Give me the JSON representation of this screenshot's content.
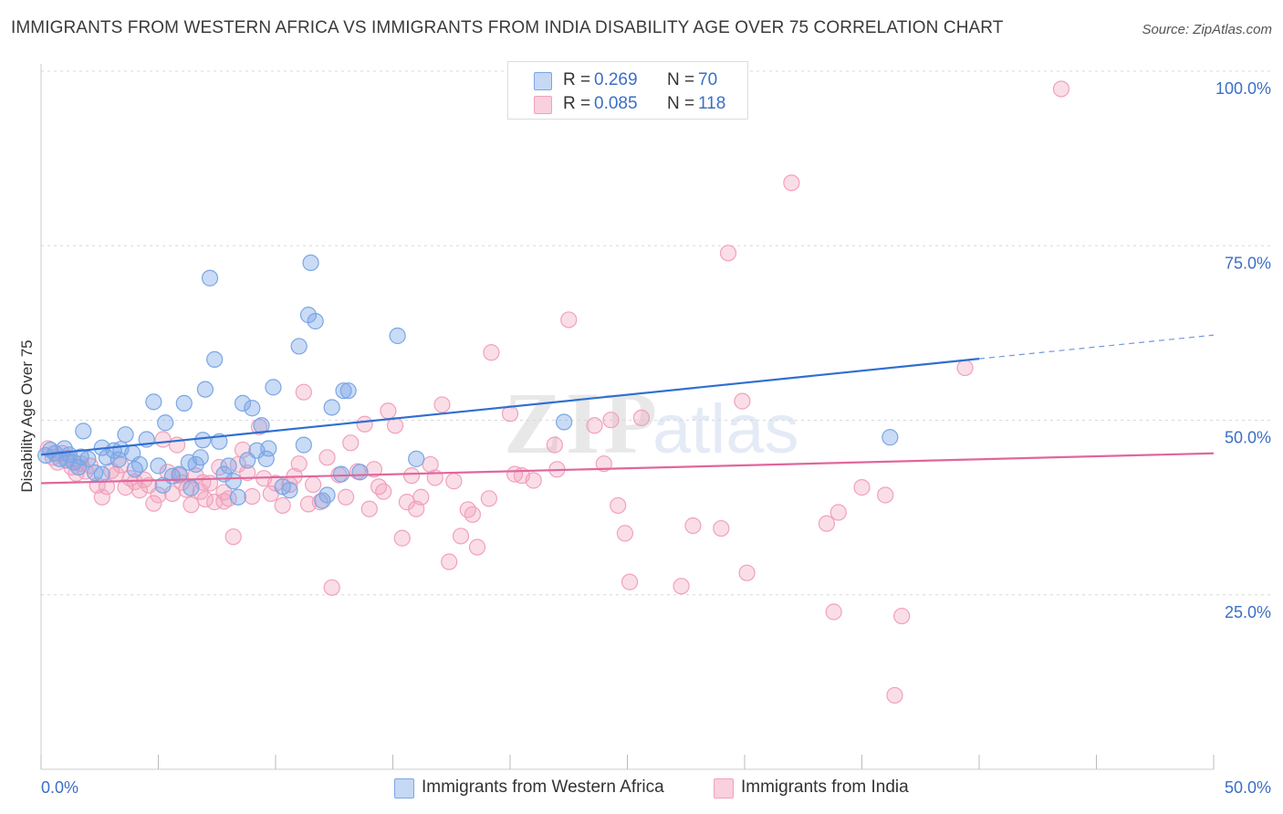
{
  "header": {
    "title": "IMMIGRANTS FROM WESTERN AFRICA VS IMMIGRANTS FROM INDIA DISABILITY AGE OVER 75 CORRELATION CHART",
    "source": "Source: ZipAtlas.com"
  },
  "watermark": {
    "zip": "ZIP",
    "atlas": "atlas"
  },
  "legend": {
    "series1": {
      "r_label": "R = ",
      "r_value": "0.269",
      "n_label": "N = ",
      "n_value": "70",
      "color": "#7aa6e6"
    },
    "series2": {
      "r_label": "R = ",
      "r_value": "0.085",
      "n_label": "N = ",
      "n_value": "118",
      "color": "#f2a0bb"
    }
  },
  "bottom_legend": {
    "series1_label": "Immigrants from Western Africa",
    "series2_label": "Immigrants from India"
  },
  "chart_data": {
    "type": "scatter",
    "title": "IMMIGRANTS FROM WESTERN AFRICA VS IMMIGRANTS FROM INDIA DISABILITY AGE OVER 75 CORRELATION CHART",
    "ylabel": "Disability Age Over 75",
    "xlabel": "",
    "x_tick_labels": [
      "0.0%",
      "50.0%"
    ],
    "y_tick_labels": [
      "100.0%",
      "75.0%",
      "50.0%",
      "25.0%"
    ],
    "y_tick_values": [
      100,
      75,
      50,
      25
    ],
    "xlim": [
      0,
      50
    ],
    "ylim": [
      0,
      102
    ],
    "grid": true,
    "legend_position": "top-center",
    "series": [
      {
        "name": "Immigrants from Western Africa",
        "color": "#7aa6e6",
        "line_color": "#2f6fd0",
        "trend": {
          "x0": 0,
          "y0": 47.6,
          "x1": 40,
          "y1": 61.4,
          "dash_to_x": 50,
          "dash_to_y": 64.8
        },
        "points": [
          [
            0.2,
            47.5
          ],
          [
            0.4,
            48.3
          ],
          [
            0.6,
            47.8
          ],
          [
            0.8,
            47.0
          ],
          [
            1.0,
            48.5
          ],
          [
            1.2,
            47.6
          ],
          [
            1.4,
            46.5
          ],
          [
            1.6,
            45.8
          ],
          [
            1.8,
            51.0
          ],
          [
            2.0,
            47.0
          ],
          [
            2.3,
            45.0
          ],
          [
            2.6,
            48.6
          ],
          [
            2.8,
            47.2
          ],
          [
            3.1,
            48.2
          ],
          [
            3.4,
            48.4
          ],
          [
            3.6,
            50.5
          ],
          [
            3.9,
            47.8
          ],
          [
            4.0,
            45.5
          ],
          [
            4.2,
            46.2
          ],
          [
            4.5,
            49.8
          ],
          [
            4.8,
            55.2
          ],
          [
            5.0,
            46.0
          ],
          [
            5.2,
            43.2
          ],
          [
            5.3,
            52.2
          ],
          [
            5.6,
            44.5
          ],
          [
            5.9,
            44.8
          ],
          [
            6.1,
            55.0
          ],
          [
            6.3,
            46.5
          ],
          [
            6.4,
            42.8
          ],
          [
            6.6,
            46.2
          ],
          [
            6.8,
            47.2
          ],
          [
            6.9,
            49.7
          ],
          [
            7.0,
            57.0
          ],
          [
            7.2,
            73.0
          ],
          [
            7.4,
            61.3
          ],
          [
            7.6,
            49.5
          ],
          [
            7.8,
            44.8
          ],
          [
            8.0,
            46.0
          ],
          [
            8.2,
            43.8
          ],
          [
            8.4,
            41.5
          ],
          [
            8.6,
            55.0
          ],
          [
            8.8,
            46.8
          ],
          [
            9.0,
            54.3
          ],
          [
            9.2,
            48.2
          ],
          [
            9.4,
            51.8
          ],
          [
            9.6,
            47.0
          ],
          [
            9.7,
            48.5
          ],
          [
            9.9,
            57.3
          ],
          [
            10.3,
            43.0
          ],
          [
            10.6,
            42.5
          ],
          [
            11.0,
            63.2
          ],
          [
            11.2,
            49.0
          ],
          [
            11.4,
            67.7
          ],
          [
            11.7,
            66.8
          ],
          [
            11.5,
            75.2
          ],
          [
            12.0,
            41.0
          ],
          [
            12.2,
            41.8
          ],
          [
            12.4,
            54.4
          ],
          [
            12.8,
            44.8
          ],
          [
            12.9,
            56.8
          ],
          [
            13.1,
            56.8
          ],
          [
            15.2,
            64.7
          ],
          [
            16.0,
            47.0
          ],
          [
            22.3,
            52.3
          ],
          [
            2.6,
            44.8
          ],
          [
            3.3,
            46.9
          ],
          [
            1.7,
            47.3
          ],
          [
            1.1,
            46.8
          ],
          [
            36.2,
            50.1
          ],
          [
            13.6,
            45.1
          ]
        ]
      },
      {
        "name": "Immigrants from India",
        "color": "#f2a0bb",
        "line_color": "#e0679a",
        "trend": {
          "x0": 0,
          "y0": 43.5,
          "x1": 50,
          "y1": 47.8
        },
        "points": [
          [
            0.3,
            48.5
          ],
          [
            0.5,
            47.2
          ],
          [
            0.7,
            46.5
          ],
          [
            0.9,
            47.8
          ],
          [
            1.1,
            47.1
          ],
          [
            1.3,
            45.8
          ],
          [
            1.5,
            44.9
          ],
          [
            1.7,
            46.3
          ],
          [
            1.9,
            45.2
          ],
          [
            2.1,
            46.0
          ],
          [
            2.4,
            43.2
          ],
          [
            2.6,
            41.5
          ],
          [
            2.8,
            43.0
          ],
          [
            3.0,
            45.3
          ],
          [
            3.2,
            44.8
          ],
          [
            3.4,
            46.1
          ],
          [
            3.6,
            42.9
          ],
          [
            3.8,
            44.2
          ],
          [
            4.0,
            43.7
          ],
          [
            4.2,
            42.5
          ],
          [
            4.4,
            44.0
          ],
          [
            4.6,
            43.2
          ],
          [
            4.8,
            40.6
          ],
          [
            5.0,
            41.8
          ],
          [
            5.2,
            49.8
          ],
          [
            5.4,
            45.1
          ],
          [
            5.6,
            42.0
          ],
          [
            5.8,
            49.0
          ],
          [
            6.0,
            43.6
          ],
          [
            6.2,
            42.6
          ],
          [
            6.4,
            40.4
          ],
          [
            6.6,
            44.6
          ],
          [
            6.8,
            42.3
          ],
          [
            7.0,
            41.2
          ],
          [
            7.2,
            43.5
          ],
          [
            7.4,
            40.8
          ],
          [
            7.6,
            45.8
          ],
          [
            7.8,
            42.2
          ],
          [
            8.0,
            41.3
          ],
          [
            8.2,
            35.8
          ],
          [
            8.4,
            46.2
          ],
          [
            8.6,
            48.3
          ],
          [
            8.8,
            45.0
          ],
          [
            9.0,
            41.6
          ],
          [
            9.3,
            51.6
          ],
          [
            9.5,
            44.2
          ],
          [
            9.8,
            42.0
          ],
          [
            10.0,
            43.5
          ],
          [
            10.3,
            40.3
          ],
          [
            10.6,
            43.3
          ],
          [
            10.8,
            44.5
          ],
          [
            11.0,
            46.3
          ],
          [
            11.2,
            56.6
          ],
          [
            11.4,
            40.5
          ],
          [
            11.6,
            43.3
          ],
          [
            11.9,
            40.8
          ],
          [
            12.2,
            47.2
          ],
          [
            12.4,
            28.5
          ],
          [
            12.7,
            44.7
          ],
          [
            13.0,
            41.5
          ],
          [
            13.2,
            49.3
          ],
          [
            13.5,
            45.2
          ],
          [
            13.8,
            52.0
          ],
          [
            14.0,
            39.8
          ],
          [
            14.2,
            45.5
          ],
          [
            14.4,
            43.0
          ],
          [
            14.6,
            42.3
          ],
          [
            14.8,
            53.9
          ],
          [
            15.1,
            51.8
          ],
          [
            15.4,
            35.6
          ],
          [
            15.6,
            40.8
          ],
          [
            15.8,
            44.6
          ],
          [
            16.0,
            39.8
          ],
          [
            16.2,
            41.5
          ],
          [
            16.6,
            46.2
          ],
          [
            16.8,
            44.3
          ],
          [
            17.1,
            54.8
          ],
          [
            17.4,
            32.2
          ],
          [
            17.6,
            43.8
          ],
          [
            17.9,
            35.9
          ],
          [
            18.2,
            39.7
          ],
          [
            18.4,
            39.0
          ],
          [
            18.6,
            34.3
          ],
          [
            19.1,
            41.3
          ],
          [
            19.2,
            62.3
          ],
          [
            20.0,
            53.5
          ],
          [
            20.2,
            44.8
          ],
          [
            20.5,
            44.6
          ],
          [
            21.0,
            43.9
          ],
          [
            21.9,
            49.0
          ],
          [
            22.0,
            45.5
          ],
          [
            22.5,
            67.0
          ],
          [
            23.6,
            51.8
          ],
          [
            24.0,
            46.3
          ],
          [
            24.3,
            52.6
          ],
          [
            24.6,
            40.3
          ],
          [
            24.9,
            36.3
          ],
          [
            25.1,
            29.3
          ],
          [
            25.6,
            52.9
          ],
          [
            27.3,
            28.7
          ],
          [
            27.8,
            37.4
          ],
          [
            29.0,
            37.0
          ],
          [
            29.3,
            76.6
          ],
          [
            29.9,
            55.3
          ],
          [
            30.1,
            30.6
          ],
          [
            32.0,
            86.7
          ],
          [
            33.5,
            37.7
          ],
          [
            33.8,
            25.0
          ],
          [
            34.0,
            39.3
          ],
          [
            35.0,
            42.9
          ],
          [
            36.0,
            41.8
          ],
          [
            36.4,
            13.0
          ],
          [
            36.7,
            24.4
          ],
          [
            39.4,
            60.1
          ],
          [
            43.5,
            100.2
          ],
          [
            7.8,
            40.9
          ],
          [
            6.9,
            43.6
          ],
          [
            5.9,
            44.6
          ]
        ]
      }
    ]
  }
}
